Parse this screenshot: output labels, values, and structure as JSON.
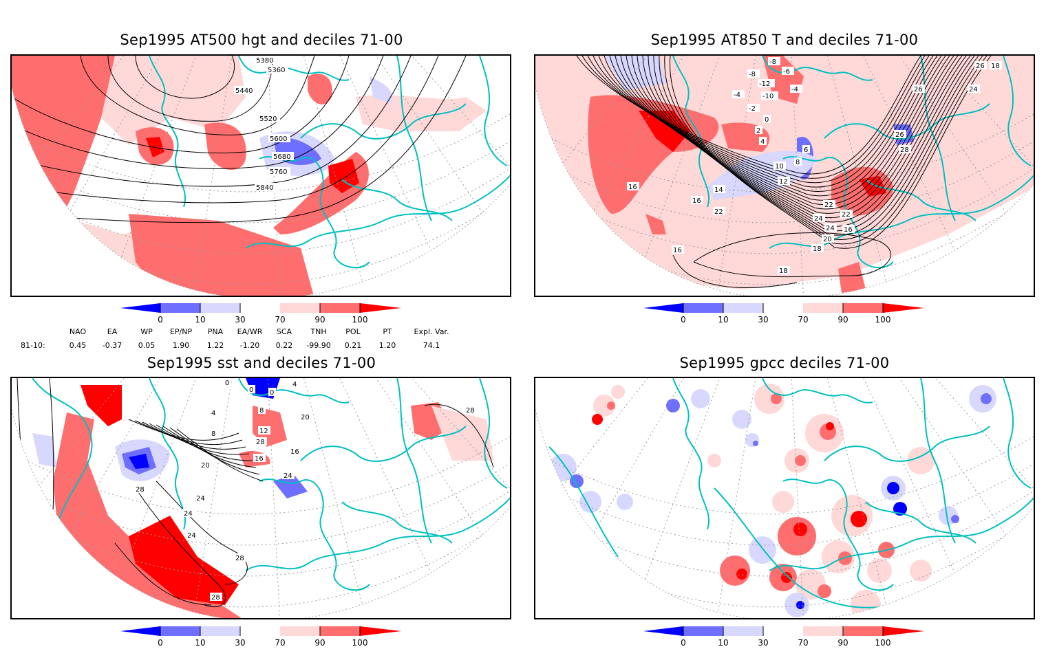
{
  "colorbar": {
    "ticks": [
      "0",
      "10",
      "30",
      "70",
      "90",
      "100"
    ],
    "colors": [
      "#0000ff",
      "#6e6eff",
      "#d8d8ff",
      "#ffffff",
      "#ffd8d8",
      "#ff6e6e",
      "#ff0000"
    ],
    "coastline_color": "#00c0c0"
  },
  "panels": [
    {
      "title": "Sep1995 AT500 hgt and deciles 71-00",
      "variable": "500 hPa geopotential height",
      "contour_labels": [
        "5380",
        "5360",
        "5440",
        "5520",
        "5600",
        "5680",
        "5760",
        "5840"
      ]
    },
    {
      "title": "Sep1995 AT850 T and deciles 71-00",
      "variable": "850 hPa temperature",
      "contour_labels": [
        "-8",
        "-8",
        "-6",
        "-12",
        "-10",
        "-4",
        "-4",
        "-2",
        "0",
        "2",
        "4",
        "6",
        "8",
        "10",
        "12",
        "14",
        "16",
        "16",
        "16",
        "16",
        "18",
        "18",
        "20",
        "22",
        "22",
        "22",
        "24",
        "24",
        "24",
        "26",
        "26",
        "26",
        "28",
        "18"
      ]
    },
    {
      "title": "Sep1995 sst and deciles 71-00",
      "variable": "sea surface temperature",
      "contour_labels": [
        "0",
        "0",
        "0",
        "4",
        "4",
        "8",
        "8",
        "12",
        "16",
        "16",
        "20",
        "20",
        "24",
        "24",
        "24",
        "24",
        "28",
        "28",
        "28",
        "28",
        "28"
      ]
    },
    {
      "title": "Sep1995 gpcc deciles 71-00",
      "variable": "GPCC precipitation",
      "contour_labels": []
    }
  ],
  "teleconnections": {
    "headers": [
      "NAO",
      "EA",
      "WP",
      "EP/NP",
      "PNA",
      "EA/WR",
      "SCA",
      "TNH",
      "POL",
      "PT",
      "Expl. Var."
    ],
    "row_label": "81-10:",
    "values": [
      "0.45",
      "-0.37",
      "0.05",
      "1.90",
      "1.22",
      "-1.20",
      "0.22",
      "-99.90",
      "0.21",
      "1.20",
      "74.1"
    ]
  }
}
